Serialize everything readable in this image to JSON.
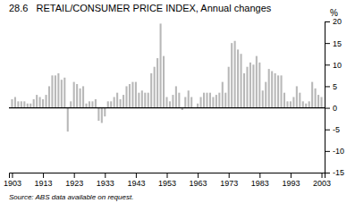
{
  "chart_data": {
    "type": "bar",
    "title": "28.6   RETAIL/CONSUMER PRICE INDEX, Annual changes",
    "ylabel": "%",
    "source": "Source: ABS data available on request.",
    "color": "#b8b8b8",
    "grid": false,
    "xlim": [
      1902,
      2004
    ],
    "xticks": [
      1903,
      1913,
      1923,
      1933,
      1943,
      1953,
      1963,
      1973,
      1983,
      1993,
      2003
    ],
    "ylim": [
      -15,
      20
    ],
    "yticks": [
      -15,
      -10,
      -5,
      0,
      5,
      10,
      15,
      20
    ],
    "x": [
      1903,
      1904,
      1905,
      1906,
      1907,
      1908,
      1909,
      1910,
      1911,
      1912,
      1913,
      1914,
      1915,
      1916,
      1917,
      1918,
      1919,
      1920,
      1921,
      1922,
      1923,
      1924,
      1925,
      1926,
      1927,
      1928,
      1929,
      1930,
      1931,
      1932,
      1933,
      1934,
      1935,
      1936,
      1937,
      1938,
      1939,
      1940,
      1941,
      1942,
      1943,
      1944,
      1945,
      1946,
      1947,
      1948,
      1949,
      1950,
      1951,
      1952,
      1953,
      1954,
      1955,
      1956,
      1957,
      1958,
      1959,
      1960,
      1961,
      1962,
      1963,
      1964,
      1965,
      1966,
      1967,
      1968,
      1969,
      1970,
      1971,
      1972,
      1973,
      1974,
      1975,
      1976,
      1977,
      1978,
      1979,
      1980,
      1981,
      1982,
      1983,
      1984,
      1985,
      1986,
      1987,
      1988,
      1989,
      1990,
      1991,
      1992,
      1993,
      1994,
      1995,
      1996,
      1997,
      1998,
      1999,
      2000,
      2001,
      2002,
      2003
    ],
    "values": [
      2.0,
      2.5,
      1.5,
      1.5,
      1.5,
      1.0,
      1.0,
      2.0,
      3.0,
      2.5,
      2.0,
      3.0,
      5.0,
      7.5,
      7.5,
      8.0,
      6.5,
      7.0,
      -5.5,
      1.5,
      6.0,
      5.5,
      4.5,
      5.0,
      1.0,
      1.5,
      1.5,
      2.0,
      -3.0,
      -3.5,
      -2.0,
      1.5,
      1.5,
      2.5,
      3.5,
      2.0,
      3.0,
      5.0,
      5.5,
      6.0,
      6.0,
      3.5,
      4.0,
      3.5,
      3.5,
      8.0,
      9.5,
      11.5,
      19.5,
      12.0,
      2.5,
      1.5,
      3.0,
      5.0,
      3.5,
      -0.5,
      2.5,
      4.0,
      2.5,
      0.0,
      1.0,
      2.5,
      3.5,
      3.5,
      3.5,
      2.5,
      3.0,
      3.5,
      6.0,
      3.5,
      9.5,
      15.0,
      15.5,
      13.5,
      12.5,
      8.0,
      9.5,
      10.5,
      10.0,
      12.0,
      10.5,
      4.0,
      6.0,
      9.0,
      8.5,
      8.0,
      7.5,
      7.5,
      3.5,
      1.5,
      1.5,
      2.5,
      5.0,
      3.5,
      1.5,
      1.0,
      1.5,
      6.0,
      4.5,
      3.0,
      2.5
    ]
  }
}
